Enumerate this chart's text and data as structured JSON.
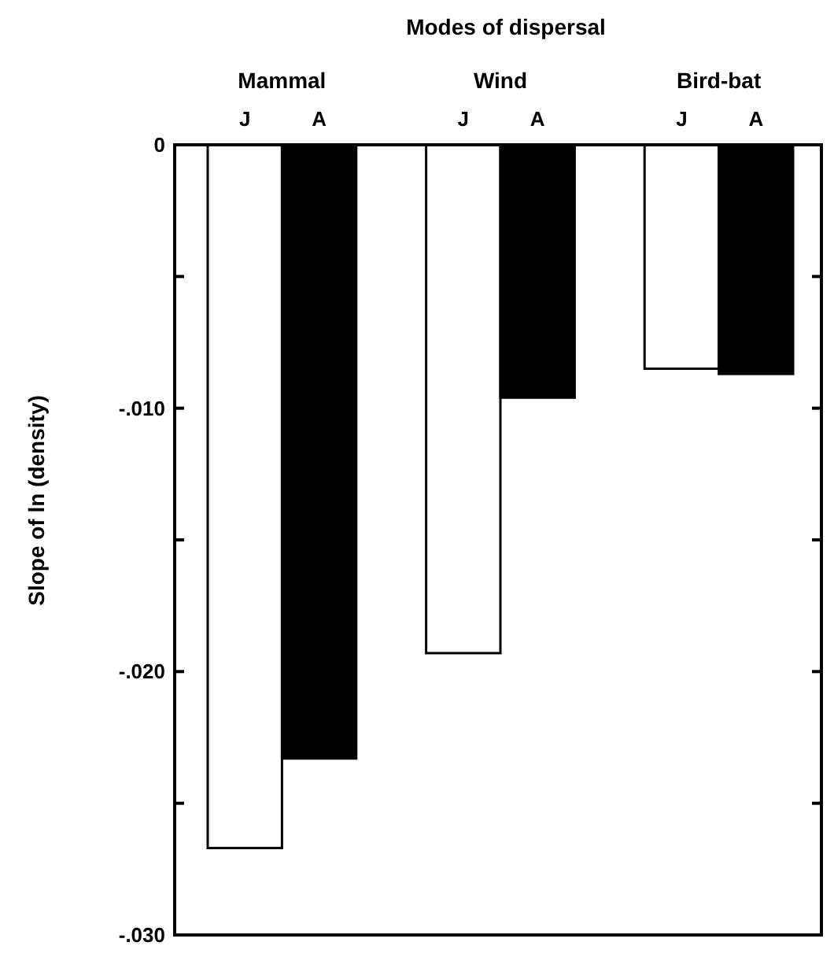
{
  "chart_data": {
    "type": "bar",
    "xlabel": "Modes of dispersal",
    "ylabel": "Slope of ln (density)",
    "categories": [
      "Mammal",
      "Wind",
      "Bird-bat"
    ],
    "series": [
      {
        "name": "J",
        "color": "#ffffff",
        "values": [
          -0.0267,
          -0.0193,
          -0.0085
        ]
      },
      {
        "name": "A",
        "color": "#000000",
        "values": [
          -0.0233,
          -0.0096,
          -0.0087
        ]
      }
    ],
    "ylim": [
      -0.03,
      0
    ],
    "yticks": [
      0,
      {
        "value": -0.005,
        "label": null
      },
      {
        "value": -0.01,
        "label": "-.010"
      },
      {
        "value": -0.015,
        "label": null
      },
      {
        "value": -0.02,
        "label": "-.020"
      },
      {
        "value": -0.025,
        "label": null
      },
      {
        "value": -0.03,
        "label": "-.030"
      }
    ],
    "grid": false
  }
}
